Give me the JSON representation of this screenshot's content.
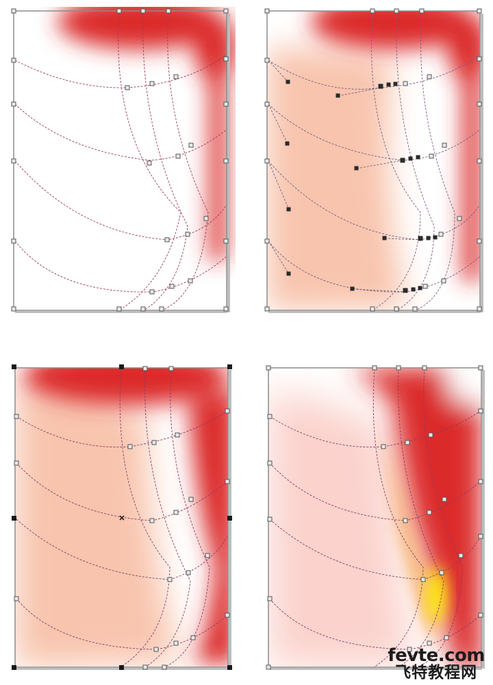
{
  "colors": {
    "red": "#db2a2a",
    "peach": "#f8c4ad",
    "yellow": "#fff200",
    "orange": "#f7a23b",
    "mesh_line": "#9b3a58",
    "frame": "#8c8c8c"
  },
  "panels": [
    {
      "index": 1,
      "fill": "partial",
      "handles": false,
      "selected": false,
      "highlight": false
    },
    {
      "index": 2,
      "fill": "peach",
      "handles": true,
      "selected": false,
      "highlight": false
    },
    {
      "index": 3,
      "fill": "peach",
      "handles": false,
      "selected": true,
      "highlight": false
    },
    {
      "index": 4,
      "fill": "full",
      "handles": false,
      "selected": false,
      "highlight": true
    }
  ],
  "watermark": {
    "site": "fevte.com",
    "cn": "飞特教程网"
  }
}
